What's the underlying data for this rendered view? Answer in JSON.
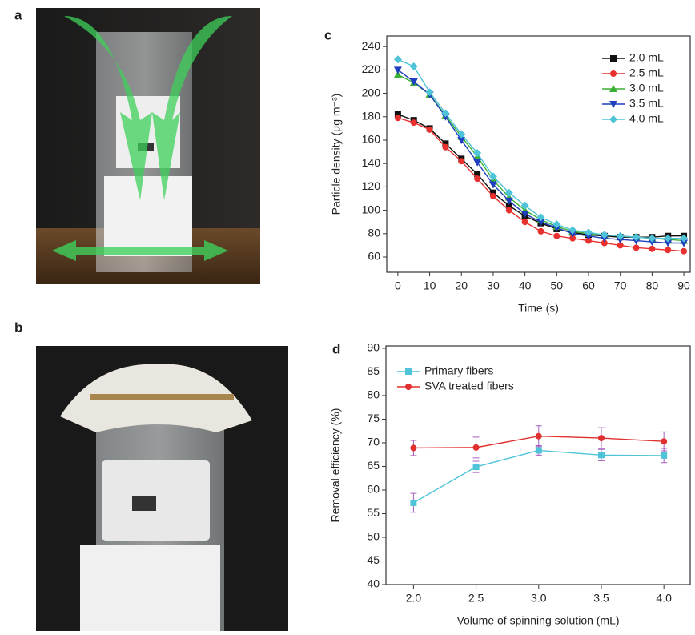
{
  "panels": [
    {
      "label": "a"
    },
    {
      "label": "b"
    }
  ],
  "chart_data": [
    {
      "type": "line",
      "panel_label": "c",
      "xlabel": "Time (s)",
      "ylabel": "Particle density (μg m⁻³)",
      "x": [
        0,
        5,
        10,
        15,
        20,
        25,
        30,
        35,
        40,
        45,
        50,
        55,
        60,
        65,
        70,
        75,
        80,
        85,
        90
      ],
      "series": [
        {
          "name": "2.0 mL",
          "color": "#111111",
          "marker": "square",
          "values": [
            182,
            177,
            170,
            157,
            144,
            131,
            115,
            104,
            95,
            89,
            84,
            81,
            79,
            78,
            77,
            77,
            77,
            78,
            78
          ]
        },
        {
          "name": "2.5 mL",
          "color": "#e8312f",
          "marker": "circle",
          "values": [
            179,
            175,
            169,
            154,
            142,
            127,
            112,
            100,
            90,
            82,
            78,
            76,
            74,
            72,
            70,
            68,
            67,
            66,
            65
          ]
        },
        {
          "name": "3.0 mL",
          "color": "#3cb034",
          "marker": "triangle-up",
          "values": [
            216,
            209,
            199,
            181,
            163,
            146,
            126,
            111,
            100,
            92,
            86,
            82,
            80,
            79,
            78,
            77,
            76,
            75,
            74
          ]
        },
        {
          "name": "3.5 mL",
          "color": "#1f3fbf",
          "marker": "triangle-down",
          "values": [
            220,
            210,
            199,
            180,
            160,
            141,
            122,
            108,
            97,
            90,
            85,
            80,
            78,
            76,
            75,
            74,
            73,
            72,
            72
          ]
        },
        {
          "name": "4.0 mL",
          "color": "#4fc4d8",
          "marker": "diamond",
          "values": [
            229,
            223,
            201,
            183,
            165,
            149,
            129,
            115,
            104,
            94,
            88,
            83,
            81,
            79,
            78,
            77,
            76,
            76,
            76
          ]
        }
      ],
      "xlim": [
        -3.5,
        92
      ],
      "ylim": [
        47,
        249
      ],
      "xticks": [
        0,
        10,
        20,
        30,
        40,
        50,
        60,
        70,
        80,
        90
      ],
      "yticks": [
        60,
        80,
        100,
        120,
        140,
        160,
        180,
        200,
        220,
        240
      ],
      "legend_position": "top-right"
    },
    {
      "type": "line",
      "panel_label": "d",
      "xlabel": "Volume of spinning solution (mL)",
      "ylabel": "Removal efficiency (%)",
      "x": [
        2,
        2.5,
        3,
        3.5,
        4
      ],
      "series": [
        {
          "name": "Primary fibers",
          "color": "#4fc4d8",
          "marker": "square",
          "values": [
            57.3,
            64.9,
            68.4,
            67.4,
            67.3
          ],
          "errors": [
            2,
            1.2,
            1,
            1.2,
            1.5
          ]
        },
        {
          "name": "SVA treated fibers",
          "color": "#e0302f",
          "marker": "circle",
          "values": [
            68.9,
            69,
            71.4,
            71,
            70.3
          ],
          "errors": [
            1.6,
            2.2,
            2.2,
            2.2,
            2
          ]
        }
      ],
      "xlim": [
        1.78,
        4.21
      ],
      "ylim": [
        40,
        90.5
      ],
      "xticks": [
        {
          "value": 2,
          "label": "2.0"
        },
        {
          "value": 2.5,
          "label": "2.5"
        },
        {
          "value": 3,
          "label": "3.0"
        },
        {
          "value": 3.5,
          "label": "3.5"
        },
        {
          "value": 4,
          "label": "4.0"
        }
      ],
      "yticks": [
        40,
        45,
        50,
        55,
        60,
        65,
        70,
        75,
        80,
        85,
        90
      ],
      "legend_position": "top-left"
    }
  ]
}
